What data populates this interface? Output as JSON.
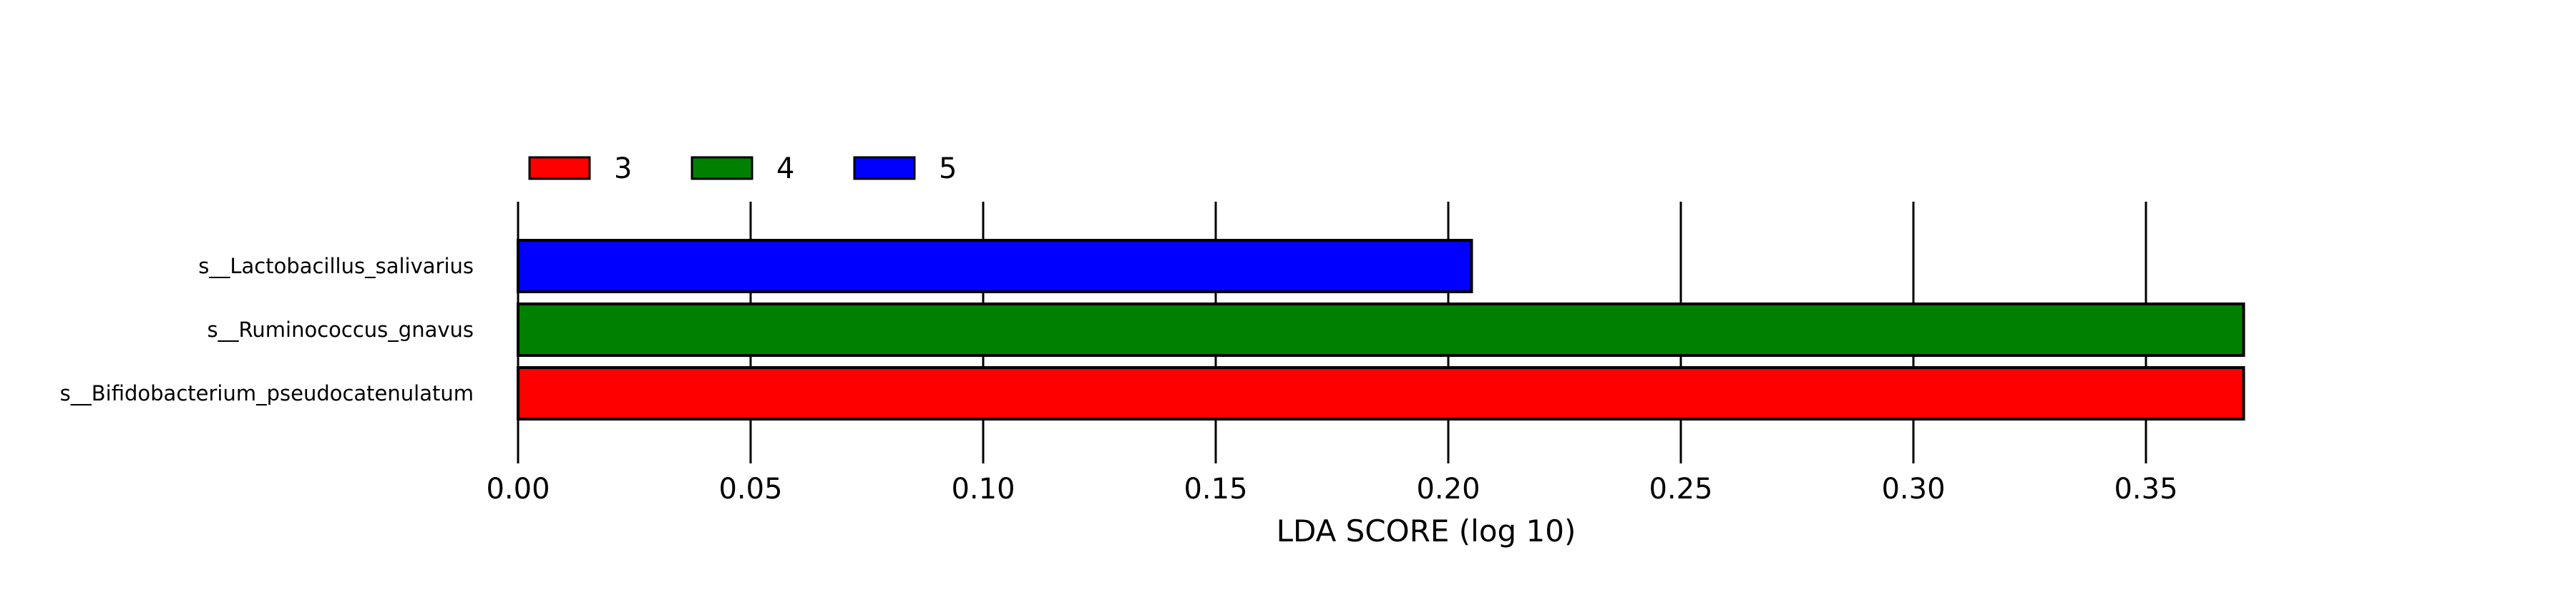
{
  "chart_data": {
    "type": "bar",
    "orientation": "horizontal",
    "xlabel": "LDA SCORE (log 10)",
    "ylabel": "",
    "title": "",
    "xlim": [
      0.0,
      0.38
    ],
    "xticks": [
      "0.00",
      "0.05",
      "0.10",
      "0.15",
      "0.20",
      "0.25",
      "0.30",
      "0.35"
    ],
    "xtick_values": [
      0.0,
      0.05,
      0.1,
      0.15,
      0.2,
      0.25,
      0.3,
      0.35
    ],
    "grid": "vertical",
    "legend_position": "top-left",
    "legend": [
      {
        "label": "3",
        "color": "#ff0000"
      },
      {
        "label": "4",
        "color": "#008000"
      },
      {
        "label": "5",
        "color": "#0000ff"
      }
    ],
    "bars": [
      {
        "category": "s__Lactobacillus_salivarius",
        "value": 0.205,
        "group": "5",
        "color": "#0000ff"
      },
      {
        "category": "s__Ruminococcus_gnavus",
        "value": 0.371,
        "group": "4",
        "color": "#008000"
      },
      {
        "category": "s__Bifidobacterium_pseudocatenulatum",
        "value": 0.371,
        "group": "3",
        "color": "#ff0000"
      }
    ]
  }
}
